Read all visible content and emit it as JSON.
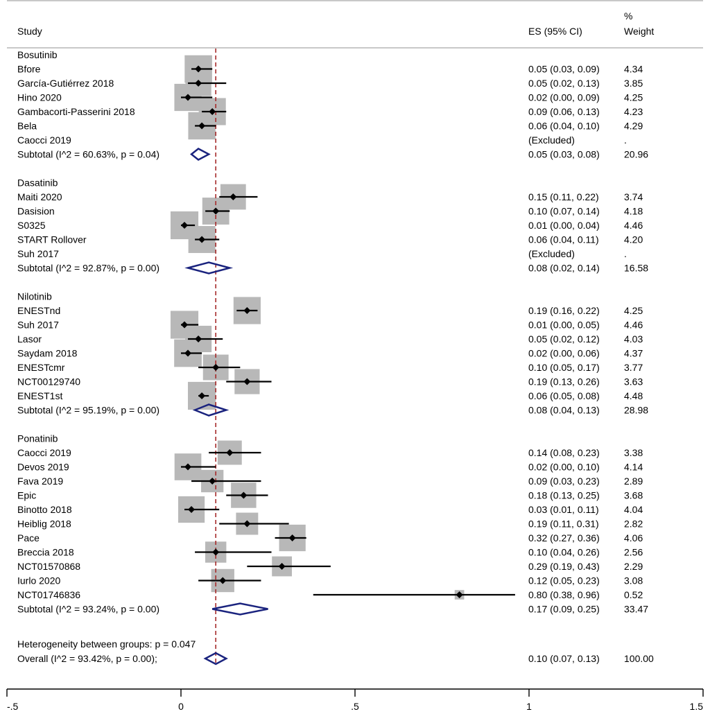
{
  "header": {
    "study": "Study",
    "es": "ES (95% CI)",
    "weight_line1": "%",
    "weight_line2": "Weight"
  },
  "footer": {
    "heterogeneity_between_groups": "Heterogeneity between groups: p = 0.047",
    "overall_label": "Overall  (I^2 = 93.42%, p = 0.00);",
    "overall_es": "0.10 (0.07, 0.13)",
    "overall_weight": "100.00"
  },
  "chart_data": {
    "type": "forest",
    "title": "",
    "xlabel": "",
    "xlim": [
      -0.5,
      1.5
    ],
    "xticks": [
      -0.5,
      0,
      0.5,
      1,
      1.5
    ],
    "xtick_labels": [
      "-.5",
      "0",
      ".5",
      "1",
      "1.5"
    ],
    "null_line": 0.1,
    "colors": {
      "box": "#b8b8b8",
      "point": "#000000",
      "diamond": "#1a237e",
      "ref_line": "#a52a2a"
    },
    "groups": [
      {
        "name": "Bosutinib",
        "studies": [
          {
            "label": "Bfore",
            "es": 0.05,
            "lo": 0.03,
            "hi": 0.09,
            "es_text": "0.05 (0.03, 0.09)",
            "weight": "4.34"
          },
          {
            "label": "García-Gutiérrez 2018",
            "es": 0.05,
            "lo": 0.02,
            "hi": 0.13,
            "es_text": "0.05 (0.02, 0.13)",
            "weight": "3.85"
          },
          {
            "label": "Hino 2020",
            "es": 0.02,
            "lo": 0.0,
            "hi": 0.09,
            "es_text": "0.02 (0.00, 0.09)",
            "weight": "4.25"
          },
          {
            "label": "Gambacorti-Passerini 2018",
            "es": 0.09,
            "lo": 0.06,
            "hi": 0.13,
            "es_text": "0.09 (0.06, 0.13)",
            "weight": "4.23"
          },
          {
            "label": "Bela",
            "es": 0.06,
            "lo": 0.04,
            "hi": 0.1,
            "es_text": "0.06 (0.04, 0.10)",
            "weight": "4.29"
          },
          {
            "label": "Caocci 2019",
            "es": null,
            "lo": null,
            "hi": null,
            "es_text": "(Excluded)",
            "weight": "."
          }
        ],
        "subtotal": {
          "label": "Subtotal  (I^2 = 60.63%, p = 0.04)",
          "es": 0.05,
          "lo": 0.03,
          "hi": 0.08,
          "es_text": "0.05 (0.03, 0.08)",
          "weight": "20.96"
        }
      },
      {
        "name": "Dasatinib",
        "studies": [
          {
            "label": "Maiti 2020",
            "es": 0.15,
            "lo": 0.11,
            "hi": 0.22,
            "es_text": "0.15 (0.11, 0.22)",
            "weight": "3.74"
          },
          {
            "label": "Dasision",
            "es": 0.1,
            "lo": 0.07,
            "hi": 0.14,
            "es_text": "0.10 (0.07, 0.14)",
            "weight": "4.18"
          },
          {
            "label": "S0325",
            "es": 0.01,
            "lo": 0.0,
            "hi": 0.04,
            "es_text": "0.01 (0.00, 0.04)",
            "weight": "4.46"
          },
          {
            "label": "START Rollover",
            "es": 0.06,
            "lo": 0.04,
            "hi": 0.11,
            "es_text": "0.06 (0.04, 0.11)",
            "weight": "4.20"
          },
          {
            "label": "Suh 2017",
            "es": null,
            "lo": null,
            "hi": null,
            "es_text": "(Excluded)",
            "weight": "."
          }
        ],
        "subtotal": {
          "label": "Subtotal  (I^2 = 92.87%, p = 0.00)",
          "es": 0.08,
          "lo": 0.02,
          "hi": 0.14,
          "es_text": "0.08 (0.02, 0.14)",
          "weight": "16.58"
        }
      },
      {
        "name": "Nilotinib",
        "studies": [
          {
            "label": "ENESTnd",
            "es": 0.19,
            "lo": 0.16,
            "hi": 0.22,
            "es_text": "0.19 (0.16, 0.22)",
            "weight": "4.25"
          },
          {
            "label": "Suh 2017",
            "es": 0.01,
            "lo": 0.0,
            "hi": 0.05,
            "es_text": "0.01 (0.00, 0.05)",
            "weight": "4.46"
          },
          {
            "label": "Lasor",
            "es": 0.05,
            "lo": 0.02,
            "hi": 0.12,
            "es_text": "0.05 (0.02, 0.12)",
            "weight": "4.03"
          },
          {
            "label": "Saydam 2018",
            "es": 0.02,
            "lo": 0.0,
            "hi": 0.06,
            "es_text": "0.02 (0.00, 0.06)",
            "weight": "4.37"
          },
          {
            "label": "ENESTcmr",
            "es": 0.1,
            "lo": 0.05,
            "hi": 0.17,
            "es_text": "0.10 (0.05, 0.17)",
            "weight": "3.77"
          },
          {
            "label": "NCT00129740",
            "es": 0.19,
            "lo": 0.13,
            "hi": 0.26,
            "es_text": "0.19 (0.13, 0.26)",
            "weight": "3.63"
          },
          {
            "label": "ENEST1st",
            "es": 0.06,
            "lo": 0.05,
            "hi": 0.08,
            "es_text": "0.06 (0.05, 0.08)",
            "weight": "4.48"
          }
        ],
        "subtotal": {
          "label": "Subtotal  (I^2 = 95.19%, p = 0.00)",
          "es": 0.08,
          "lo": 0.04,
          "hi": 0.13,
          "es_text": "0.08 (0.04, 0.13)",
          "weight": "28.98"
        }
      },
      {
        "name": "Ponatinib",
        "studies": [
          {
            "label": "Caocci 2019",
            "es": 0.14,
            "lo": 0.08,
            "hi": 0.23,
            "es_text": "0.14 (0.08, 0.23)",
            "weight": "3.38"
          },
          {
            "label": "Devos 2019",
            "es": 0.02,
            "lo": 0.0,
            "hi": 0.1,
            "es_text": "0.02 (0.00, 0.10)",
            "weight": "4.14"
          },
          {
            "label": "Fava 2019",
            "es": 0.09,
            "lo": 0.03,
            "hi": 0.23,
            "es_text": "0.09 (0.03, 0.23)",
            "weight": "2.89"
          },
          {
            "label": "Epic",
            "es": 0.18,
            "lo": 0.13,
            "hi": 0.25,
            "es_text": "0.18 (0.13, 0.25)",
            "weight": "3.68"
          },
          {
            "label": "Binotto 2018",
            "es": 0.03,
            "lo": 0.01,
            "hi": 0.11,
            "es_text": "0.03 (0.01, 0.11)",
            "weight": "4.04"
          },
          {
            "label": "Heiblig 2018",
            "es": 0.19,
            "lo": 0.11,
            "hi": 0.31,
            "es_text": "0.19 (0.11, 0.31)",
            "weight": "2.82"
          },
          {
            "label": "Pace",
            "es": 0.32,
            "lo": 0.27,
            "hi": 0.36,
            "es_text": "0.32 (0.27, 0.36)",
            "weight": "4.06"
          },
          {
            "label": "Breccia 2018",
            "es": 0.1,
            "lo": 0.04,
            "hi": 0.26,
            "es_text": "0.10 (0.04, 0.26)",
            "weight": "2.56"
          },
          {
            "label": "NCT01570868",
            "es": 0.29,
            "lo": 0.19,
            "hi": 0.43,
            "es_text": "0.29 (0.19, 0.43)",
            "weight": "2.29"
          },
          {
            "label": "Iurlo 2020",
            "es": 0.12,
            "lo": 0.05,
            "hi": 0.23,
            "es_text": "0.12 (0.05, 0.23)",
            "weight": "3.08"
          },
          {
            "label": "NCT01746836",
            "es": 0.8,
            "lo": 0.38,
            "hi": 0.96,
            "es_text": "0.80 (0.38, 0.96)",
            "weight": "0.52"
          }
        ],
        "subtotal": {
          "label": "Subtotal  (I^2 = 93.24%, p = 0.00)",
          "es": 0.17,
          "lo": 0.09,
          "hi": 0.25,
          "es_text": "0.17 (0.09, 0.25)",
          "weight": "33.47"
        }
      }
    ],
    "overall": {
      "es": 0.1,
      "lo": 0.07,
      "hi": 0.13
    }
  }
}
